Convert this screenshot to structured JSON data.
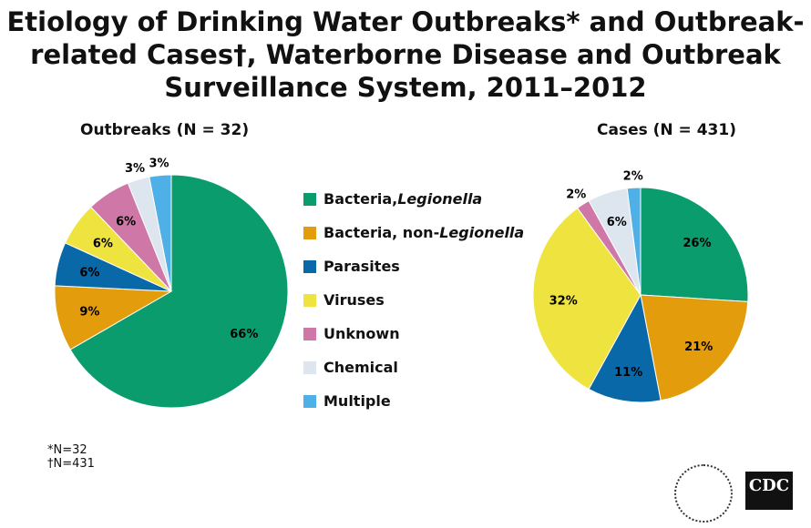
{
  "title": "Etiology of Drinking Water Outbreaks* and Outbreak-related Cases†, Waterborne Disease and Outbreak Surveillance System, 2011–2012",
  "footnotes": [
    "*N=32",
    "†N=431"
  ],
  "logos": [
    "DEPARTMENT OF HEALTH & HUMAN SERVICES USA",
    "CDC"
  ],
  "chart_data": [
    {
      "type": "pie",
      "title": "Outbreaks (N = 32)",
      "legend_position": "right",
      "categories": [
        "Bacteria, Legionella",
        "Bacteria, non-Legionella",
        "Parasites",
        "Viruses",
        "Unknown",
        "Chemical",
        "Multiple"
      ],
      "values": [
        66,
        9,
        6,
        6,
        6,
        3,
        3
      ],
      "labels": [
        "66%",
        "9%",
        "6%",
        "6%",
        "6%",
        "3%",
        "3%"
      ]
    },
    {
      "type": "pie",
      "title": "Cases (N = 431)",
      "categories": [
        "Bacteria, Legionella",
        "Bacteria, non-Legionella",
        "Parasites",
        "Viruses",
        "Unknown",
        "Chemical",
        "Multiple"
      ],
      "values": [
        26,
        21,
        11,
        32,
        2,
        6,
        2
      ],
      "labels": [
        "26%",
        "21%",
        "11%",
        "32%",
        "2%",
        "6%",
        "2%"
      ]
    }
  ],
  "legend": [
    {
      "pre": "Bacteria, ",
      "ital": "Legionella",
      "color": "#0b9c6d"
    },
    {
      "pre": "Bacteria, non-",
      "ital": "Legionella",
      "color": "#e39c0b"
    },
    {
      "pre": "Parasites",
      "ital": "",
      "color": "#0868a8"
    },
    {
      "pre": "Viruses",
      "ital": "",
      "color": "#eee33f"
    },
    {
      "pre": "Unknown",
      "ital": "",
      "color": "#cf78a7"
    },
    {
      "pre": "Chemical",
      "ital": "",
      "color": "#dde5ef"
    },
    {
      "pre": "Multiple",
      "ital": "",
      "color": "#4eb0e6"
    }
  ]
}
